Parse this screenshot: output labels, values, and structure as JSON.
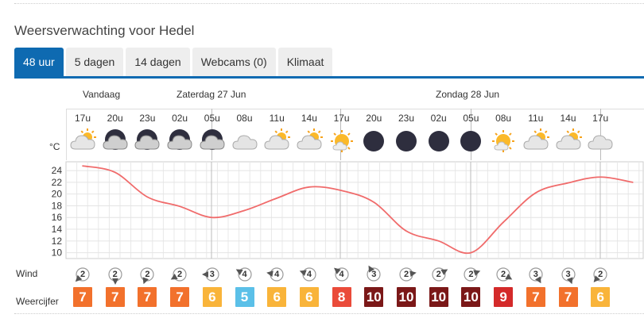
{
  "title": "Weersverwachting voor Hedel",
  "tabs": [
    {
      "label": "48 uur",
      "active": true
    },
    {
      "label": "5 dagen",
      "active": false
    },
    {
      "label": "14 dagen",
      "active": false
    },
    {
      "label": "Webcams (0)",
      "active": false
    },
    {
      "label": "Klimaat",
      "active": false
    }
  ],
  "days": [
    "Vandaag",
    "Zaterdag 27 Jun",
    "Zondag 28 Jun"
  ],
  "hours": [
    "17u",
    "20u",
    "23u",
    "02u",
    "05u",
    "08u",
    "11u",
    "14u",
    "17u",
    "20u",
    "23u",
    "02u",
    "05u",
    "08u",
    "11u",
    "14u",
    "17u"
  ],
  "conditions": [
    "cloud-sun-icon",
    "cloud-moon-icon",
    "cloud-moon-icon",
    "cloud-moon-icon",
    "cloud-moon-icon",
    "cloud-icon",
    "cloud-sun-icon",
    "cloud-sun-icon",
    "sun-icon",
    "moon-icon",
    "moon-icon",
    "moon-icon",
    "moon-icon",
    "sun-icon",
    "cloud-sun-icon",
    "cloud-sun-icon",
    "cloud-icon"
  ],
  "unit_label": "°C",
  "wind_label": "Wind",
  "score_label": "Weercijfer",
  "wind": [
    2,
    2,
    2,
    2,
    3,
    4,
    4,
    4,
    4,
    3,
    2,
    2,
    2,
    2,
    3,
    3,
    2
  ],
  "scores": [
    {
      "value": "7",
      "color": "#f2712c"
    },
    {
      "value": "7",
      "color": "#f2712c"
    },
    {
      "value": "7",
      "color": "#f2712c"
    },
    {
      "value": "7",
      "color": "#f2712c"
    },
    {
      "value": "6",
      "color": "#f9b43a"
    },
    {
      "value": "5",
      "color": "#5bc0e8"
    },
    {
      "value": "6",
      "color": "#f9b43a"
    },
    {
      "value": "6",
      "color": "#f9b43a"
    },
    {
      "value": "8",
      "color": "#ea4b3a"
    },
    {
      "value": "10",
      "color": "#7b1818"
    },
    {
      "value": "10",
      "color": "#7b1818"
    },
    {
      "value": "10",
      "color": "#7b1818"
    },
    {
      "value": "10",
      "color": "#7b1818"
    },
    {
      "value": "9",
      "color": "#d42a2a"
    },
    {
      "value": "7",
      "color": "#f2712c"
    },
    {
      "value": "7",
      "color": "#f2712c"
    },
    {
      "value": "6",
      "color": "#f9b43a"
    }
  ],
  "chart_data": {
    "type": "line",
    "x": [
      "17u",
      "20u",
      "23u",
      "02u",
      "05u",
      "08u",
      "11u",
      "14u",
      "17u",
      "20u",
      "23u",
      "02u",
      "05u",
      "08u",
      "11u",
      "14u",
      "17u",
      "20u"
    ],
    "series": [
      {
        "values": [
          24.8,
          23.7,
          19.5,
          17.9,
          16.0,
          17.2,
          19.3,
          21.2,
          20.6,
          18.6,
          13.7,
          12.0,
          10.0,
          15.2,
          20.2,
          21.9,
          22.9,
          22.0
        ]
      }
    ],
    "yticks": [
      10,
      12,
      14,
      16,
      18,
      20,
      22,
      24
    ],
    "ylim": [
      9,
      25.5
    ],
    "line_color": "#f06b6b",
    "grid": true
  }
}
